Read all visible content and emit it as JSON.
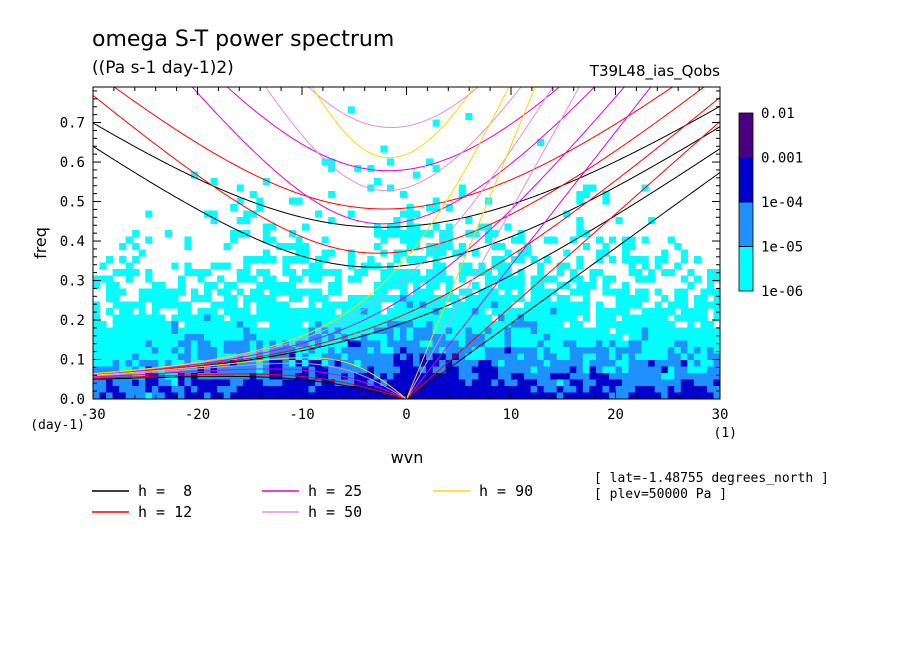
{
  "chart_data": {
    "type": "heatmap",
    "title": "omega S-T power spectrum",
    "subtitle": "((Pa s-1 day-1)2)",
    "run_label": "T39L48_ias_Qobs",
    "xlabel": "wvn",
    "ylabel": "freq",
    "x_units": "(1)",
    "y_units": "(day-1)",
    "xlim": [
      -30,
      30
    ],
    "ylim": [
      0,
      0.79
    ],
    "x_ticks": [
      -30,
      -20,
      -10,
      0,
      10,
      20,
      30
    ],
    "x_tick_labels": [
      "-30",
      "-20",
      "-10",
      "0",
      "10",
      "20",
      "30"
    ],
    "y_ticks": [
      0.0,
      0.1,
      0.2,
      0.3,
      0.4,
      0.5,
      0.6,
      0.7
    ],
    "y_tick_labels": [
      "0.0",
      "0.1",
      "0.2",
      "0.3",
      "0.4",
      "0.5",
      "0.6",
      "0.7"
    ],
    "colorbar": {
      "levels": [
        "1e-06",
        "1e-05",
        "1e-04",
        "0.001",
        "0.01"
      ],
      "colors": [
        "#00ffff",
        "#1e90ff",
        "#0000cd",
        "#00008b",
        "#4b0082"
      ]
    },
    "dispersion_curves": [
      {
        "name": "h =  8",
        "h": 8,
        "color": "#000000"
      },
      {
        "name": "h = 12",
        "h": 12,
        "color": "#ff0000"
      },
      {
        "name": "h = 25",
        "h": 25,
        "color": "#e000e0"
      },
      {
        "name": "h = 50",
        "h": 50,
        "color": "#e090e0"
      },
      {
        "name": "h = 90",
        "h": 90,
        "color": "#ffd700"
      }
    ],
    "annotations": [
      "[ lat=-1.48755 degrees_north ]",
      "[ plev=50000 Pa ]"
    ]
  }
}
